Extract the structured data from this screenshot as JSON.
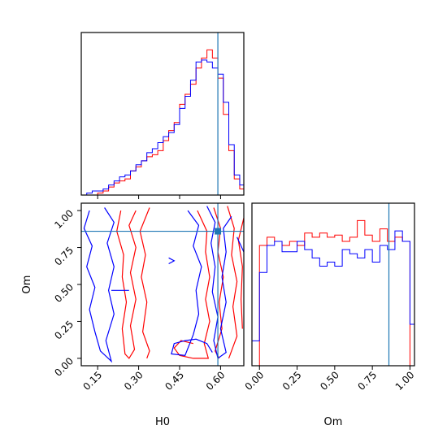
{
  "colors": {
    "red": "#ff0000",
    "blue": "#0000ff",
    "truth": "#1f77b4"
  },
  "chart_data": [
    {
      "type": "histogram",
      "panel": "H0 marginal",
      "title": "",
      "xlabel": "",
      "ylabel": "",
      "xlim": [
        0.09,
        0.685
      ],
      "truth": 0.59,
      "bin_edges": [
        0.09,
        0.11,
        0.13,
        0.15,
        0.17,
        0.19,
        0.21,
        0.23,
        0.25,
        0.27,
        0.29,
        0.31,
        0.33,
        0.35,
        0.37,
        0.39,
        0.41,
        0.43,
        0.45,
        0.47,
        0.49,
        0.51,
        0.53,
        0.55,
        0.57,
        0.59,
        0.61,
        0.63,
        0.65,
        0.67,
        0.685
      ],
      "series": [
        {
          "color": "red",
          "values": [
            0,
            0,
            0,
            1,
            2,
            4,
            6,
            7,
            8,
            12,
            14,
            17,
            19,
            20,
            22,
            27,
            32,
            36,
            45,
            50,
            55,
            63,
            68,
            72,
            68,
            58,
            40,
            22,
            8,
            3
          ]
        },
        {
          "color": "blue",
          "values": [
            0,
            1,
            2,
            2,
            3,
            5,
            7,
            9,
            10,
            12,
            15,
            17,
            21,
            23,
            26,
            29,
            31,
            35,
            43,
            49,
            57,
            66,
            67,
            66,
            63,
            60,
            46,
            25,
            10,
            5
          ]
        }
      ]
    },
    {
      "type": "contour",
      "panel": "H0 vs Om joint",
      "xlabel": "H0",
      "ylabel": "Om",
      "xlim": [
        0.09,
        0.685
      ],
      "ylim": [
        -0.05,
        1.05
      ],
      "xticks": [
        "0.15",
        "0.30",
        "0.45",
        "0.60"
      ],
      "xtick_values": [
        0.15,
        0.3,
        0.45,
        0.6
      ],
      "yticks": [
        "0.00",
        "0.25",
        "0.50",
        "0.75",
        "1.00"
      ],
      "ytick_values": [
        0,
        0.25,
        0.5,
        0.75,
        1.0
      ],
      "truth": {
        "x": 0.59,
        "y": 0.86
      },
      "red_contours": [
        [
          [
            0.235,
            1.0
          ],
          [
            0.22,
            0.86
          ],
          [
            0.245,
            0.7
          ],
          [
            0.24,
            0.55
          ],
          [
            0.255,
            0.38
          ],
          [
            0.24,
            0.2
          ],
          [
            0.25,
            0.03
          ],
          [
            0.265,
            0.0
          ],
          [
            0.285,
            0.06
          ],
          [
            0.27,
            0.22
          ],
          [
            0.29,
            0.4
          ],
          [
            0.27,
            0.58
          ],
          [
            0.29,
            0.75
          ],
          [
            0.265,
            0.9
          ],
          [
            0.29,
            1.0
          ]
        ],
        [
          [
            0.34,
            1.02
          ],
          [
            0.305,
            0.86
          ],
          [
            0.325,
            0.7
          ],
          [
            0.31,
            0.55
          ],
          [
            0.33,
            0.38
          ],
          [
            0.315,
            0.18
          ],
          [
            0.34,
            0.05
          ],
          [
            0.33,
            0.0
          ]
        ],
        [
          [
            0.515,
            1.0
          ],
          [
            0.55,
            0.86
          ],
          [
            0.545,
            0.72
          ],
          [
            0.56,
            0.55
          ],
          [
            0.545,
            0.4
          ],
          [
            0.56,
            0.25
          ],
          [
            0.54,
            0.1
          ],
          [
            0.555,
            0.0
          ],
          [
            0.5,
            0.0
          ],
          [
            0.45,
            0.02
          ],
          [
            0.43,
            0.07
          ],
          [
            0.455,
            0.12
          ],
          [
            0.5,
            0.1
          ]
        ],
        [
          [
            0.575,
            1.02
          ],
          [
            0.6,
            0.88
          ],
          [
            0.59,
            0.72
          ],
          [
            0.61,
            0.55
          ],
          [
            0.595,
            0.38
          ],
          [
            0.605,
            0.2
          ],
          [
            0.58,
            0.05
          ],
          [
            0.595,
            0.0
          ]
        ],
        [
          [
            0.625,
            1.03
          ],
          [
            0.65,
            0.88
          ],
          [
            0.64,
            0.7
          ],
          [
            0.66,
            0.52
          ],
          [
            0.645,
            0.35
          ],
          [
            0.66,
            0.15
          ],
          [
            0.63,
            0.0
          ]
        ],
        [
          [
            0.685,
            0.95
          ],
          [
            0.665,
            0.8
          ],
          [
            0.68,
            0.62
          ],
          [
            0.675,
            0.4
          ],
          [
            0.68,
            0.2
          ]
        ]
      ],
      "blue_contours": [
        [
          [
            0.12,
            1.0
          ],
          [
            0.1,
            0.88
          ],
          [
            0.13,
            0.76
          ],
          [
            0.11,
            0.62
          ],
          [
            0.14,
            0.48
          ],
          [
            0.12,
            0.33
          ],
          [
            0.14,
            0.18
          ],
          [
            0.16,
            0.05
          ],
          [
            0.2,
            -0.02
          ],
          [
            0.18,
            0.12
          ],
          [
            0.21,
            0.3
          ],
          [
            0.19,
            0.46
          ],
          [
            0.21,
            0.62
          ],
          [
            0.185,
            0.78
          ],
          [
            0.21,
            0.92
          ],
          [
            0.175,
            1.02
          ]
        ],
        [
          [
            0.2,
            0.46
          ],
          [
            0.265,
            0.46
          ]
        ],
        [
          [
            0.48,
            1.0
          ],
          [
            0.52,
            0.9
          ],
          [
            0.5,
            0.76
          ],
          [
            0.53,
            0.62
          ],
          [
            0.51,
            0.46
          ],
          [
            0.52,
            0.3
          ],
          [
            0.5,
            0.16
          ],
          [
            0.47,
            0.02
          ],
          [
            0.42,
            0.03
          ],
          [
            0.43,
            0.1
          ],
          [
            0.47,
            0.12
          ],
          [
            0.51,
            0.13
          ],
          [
            0.55,
            0.1
          ],
          [
            0.57,
            0.04
          ]
        ],
        [
          [
            0.55,
            1.03
          ],
          [
            0.58,
            0.92
          ],
          [
            0.565,
            0.78
          ],
          [
            0.58,
            0.62
          ],
          [
            0.57,
            0.45
          ],
          [
            0.59,
            0.28
          ],
          [
            0.575,
            0.12
          ],
          [
            0.59,
            0.0
          ],
          [
            0.62,
            0.04
          ],
          [
            0.6,
            0.2
          ],
          [
            0.62,
            0.38
          ],
          [
            0.605,
            0.55
          ],
          [
            0.62,
            0.72
          ],
          [
            0.61,
            0.88
          ],
          [
            0.64,
            0.96
          ]
        ],
        [
          [
            0.66,
            0.82
          ],
          [
            0.685,
            0.72
          ]
        ],
        [
          [
            0.41,
            0.68
          ],
          [
            0.43,
            0.66
          ],
          [
            0.41,
            0.64
          ]
        ]
      ]
    },
    {
      "type": "histogram",
      "panel": "Om marginal",
      "title": "",
      "xlabel": "Om",
      "ylabel": "",
      "xlim": [
        -0.05,
        1.03
      ],
      "xticks": [
        "0.00",
        "0.25",
        "0.50",
        "0.75",
        "1.00"
      ],
      "xtick_values": [
        0,
        0.25,
        0.5,
        0.75,
        1.0
      ],
      "truth": 0.86,
      "bin_edges": [
        -0.05,
        0.0,
        0.05,
        0.1,
        0.15,
        0.2,
        0.25,
        0.3,
        0.35,
        0.4,
        0.45,
        0.5,
        0.55,
        0.6,
        0.65,
        0.7,
        0.75,
        0.8,
        0.85,
        0.9,
        0.95,
        1.0,
        1.03
      ],
      "series": [
        {
          "color": "red",
          "values": [
            0,
            58,
            62,
            60,
            58,
            60,
            58,
            64,
            62,
            64,
            62,
            63,
            60,
            62,
            70,
            63,
            60,
            66,
            60,
            62,
            60,
            0
          ]
        },
        {
          "color": "blue",
          "values": [
            12,
            45,
            58,
            60,
            55,
            55,
            60,
            56,
            52,
            48,
            50,
            48,
            56,
            54,
            52,
            56,
            50,
            58,
            56,
            65,
            60,
            20
          ]
        }
      ]
    }
  ]
}
